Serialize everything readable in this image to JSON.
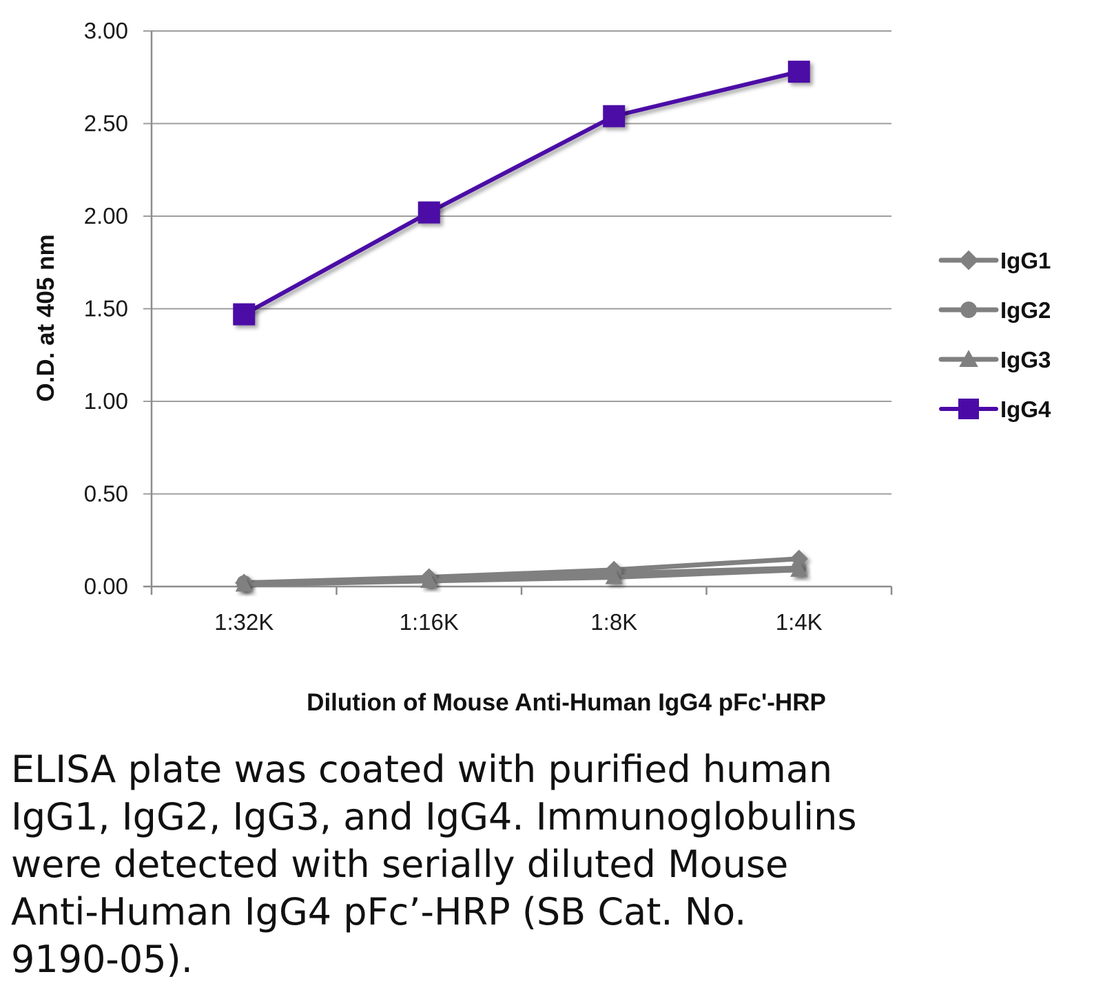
{
  "chart_data": {
    "type": "line",
    "title": "",
    "xlabel": "Dilution of Mouse Anti-Human IgG4 pFc'-HRP",
    "ylabel": "O.D. at 405 nm",
    "categories": [
      "1:32K",
      "1:16K",
      "1:8K",
      "1:4K"
    ],
    "ylim": [
      0,
      3
    ],
    "yticks": [
      0,
      0.5,
      1,
      1.5,
      2,
      2.5,
      3
    ],
    "ytick_labels": [
      "0.00",
      "0.50",
      "1.00",
      "1.50",
      "2.00",
      "2.50",
      "3.00"
    ],
    "grid": true,
    "legend_position": "right",
    "series": [
      {
        "name": "IgG1",
        "marker": "diamond",
        "color": "#808080",
        "values": [
          0.02,
          0.05,
          0.09,
          0.15
        ]
      },
      {
        "name": "IgG2",
        "marker": "circle",
        "color": "#808080",
        "values": [
          0.02,
          0.04,
          0.07,
          0.1
        ]
      },
      {
        "name": "IgG3",
        "marker": "triangle",
        "color": "#808080",
        "values": [
          0.01,
          0.03,
          0.05,
          0.09
        ]
      },
      {
        "name": "IgG4",
        "marker": "square",
        "color": "#4B0AA6",
        "values": [
          1.47,
          2.02,
          2.54,
          2.78
        ]
      }
    ]
  },
  "caption": "ELISA plate was coated with purified human\nIgG1, IgG2, IgG3, and IgG4.  Immunoglobulins\nwere detected with serially diluted Mouse\nAnti-Human IgG4 pFc’-HRP (SB Cat. No.\n9190-05)."
}
